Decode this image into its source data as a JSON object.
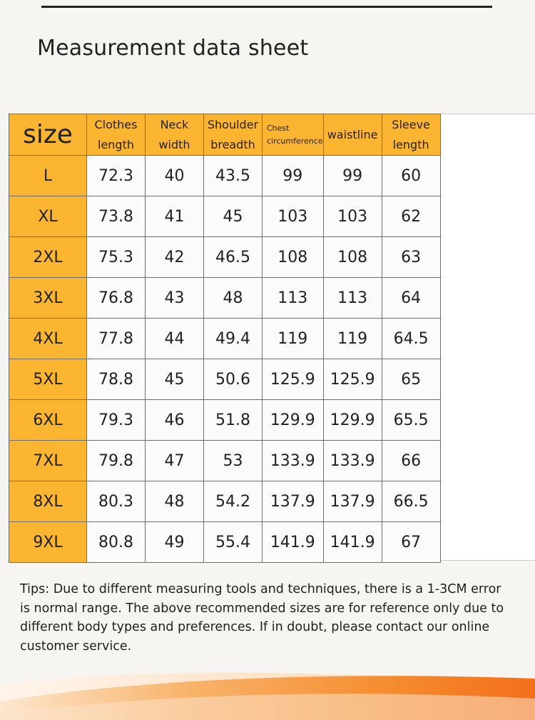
{
  "title": "Measurement data sheet",
  "table": {
    "headers": {
      "size": "size",
      "clothes_length": [
        "Clothes",
        "length"
      ],
      "neck_width": [
        "Neck",
        "width"
      ],
      "shoulder_breadth": [
        "Shoulder",
        "breadth"
      ],
      "chest_circumference": [
        "Chest",
        "circumference"
      ],
      "waistline": "waistline",
      "sleeve_length": [
        "Sleeve",
        "length"
      ]
    },
    "rows": [
      {
        "size": "L",
        "clothes_length": "72.3",
        "neck_width": "40",
        "shoulder_breadth": "43.5",
        "chest": "99",
        "waistline": "99",
        "sleeve": "60"
      },
      {
        "size": "XL",
        "clothes_length": "73.8",
        "neck_width": "41",
        "shoulder_breadth": "45",
        "chest": "103",
        "waistline": "103",
        "sleeve": "62"
      },
      {
        "size": "2XL",
        "clothes_length": "75.3",
        "neck_width": "42",
        "shoulder_breadth": "46.5",
        "chest": "108",
        "waistline": "108",
        "sleeve": "63"
      },
      {
        "size": "3XL",
        "clothes_length": "76.8",
        "neck_width": "43",
        "shoulder_breadth": "48",
        "chest": "113",
        "waistline": "113",
        "sleeve": "64"
      },
      {
        "size": "4XL",
        "clothes_length": "77.8",
        "neck_width": "44",
        "shoulder_breadth": "49.4",
        "chest": "119",
        "waistline": "119",
        "sleeve": "64.5"
      },
      {
        "size": "5XL",
        "clothes_length": "78.8",
        "neck_width": "45",
        "shoulder_breadth": "50.6",
        "chest": "125.9",
        "waistline": "125.9",
        "sleeve": "65"
      },
      {
        "size": "6XL",
        "clothes_length": "79.3",
        "neck_width": "46",
        "shoulder_breadth": "51.8",
        "chest": "129.9",
        "waistline": "129.9",
        "sleeve": "65.5"
      },
      {
        "size": "7XL",
        "clothes_length": "79.8",
        "neck_width": "47",
        "shoulder_breadth": "53",
        "chest": "133.9",
        "waistline": "133.9",
        "sleeve": "66"
      },
      {
        "size": "8XL",
        "clothes_length": "80.3",
        "neck_width": "48",
        "shoulder_breadth": "54.2",
        "chest": "137.9",
        "waistline": "137.9",
        "sleeve": "66.5"
      },
      {
        "size": "9XL",
        "clothes_length": "80.8",
        "neck_width": "49",
        "shoulder_breadth": "55.4",
        "chest": "141.9",
        "waistline": "141.9",
        "sleeve": "67"
      }
    ]
  },
  "tips": "Tips: Due to different measuring tools and techniques, there is a 1-3CM error is normal range. The above recommended sizes are for reference only due to different body types and preferences. If in doubt, please contact our online customer service.",
  "colors": {
    "header_fill": "#fbb531",
    "cell_fill": "#fbfbfb",
    "wave_orange": "#f47a20"
  }
}
